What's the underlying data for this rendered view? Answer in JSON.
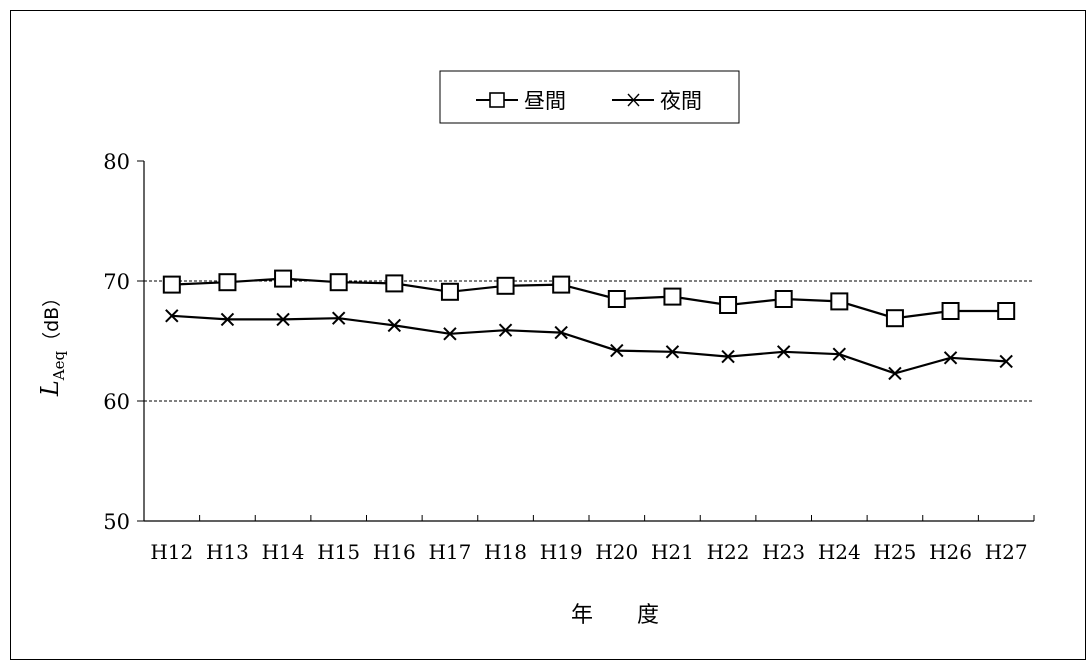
{
  "chart_data": {
    "type": "line",
    "categories": [
      "H12",
      "H13",
      "H14",
      "H15",
      "H16",
      "H17",
      "H18",
      "H19",
      "H20",
      "H21",
      "H22",
      "H23",
      "H24",
      "H25",
      "H26",
      "H27"
    ],
    "series": [
      {
        "name": "昼間",
        "marker": "square",
        "values": [
          69.7,
          69.9,
          70.2,
          69.9,
          69.8,
          69.1,
          69.6,
          69.7,
          68.5,
          68.7,
          68.0,
          68.5,
          68.3,
          66.9,
          67.5,
          67.5
        ]
      },
      {
        "name": "夜間",
        "marker": "x",
        "values": [
          67.1,
          66.8,
          66.8,
          66.9,
          66.3,
          65.6,
          65.9,
          65.7,
          64.2,
          64.1,
          63.7,
          64.1,
          63.9,
          62.3,
          63.6,
          63.3
        ]
      }
    ],
    "yticks": [
      "50",
      "60",
      "70",
      "80"
    ],
    "ylim": [
      50,
      80
    ],
    "ylabel": {
      "main": "L",
      "sub": "Aeq",
      "unit": "（dB）"
    },
    "xlabel": "年　　度",
    "gridlines": [
      60,
      70
    ],
    "legend_position": "top-center",
    "line_color": "#000000"
  }
}
